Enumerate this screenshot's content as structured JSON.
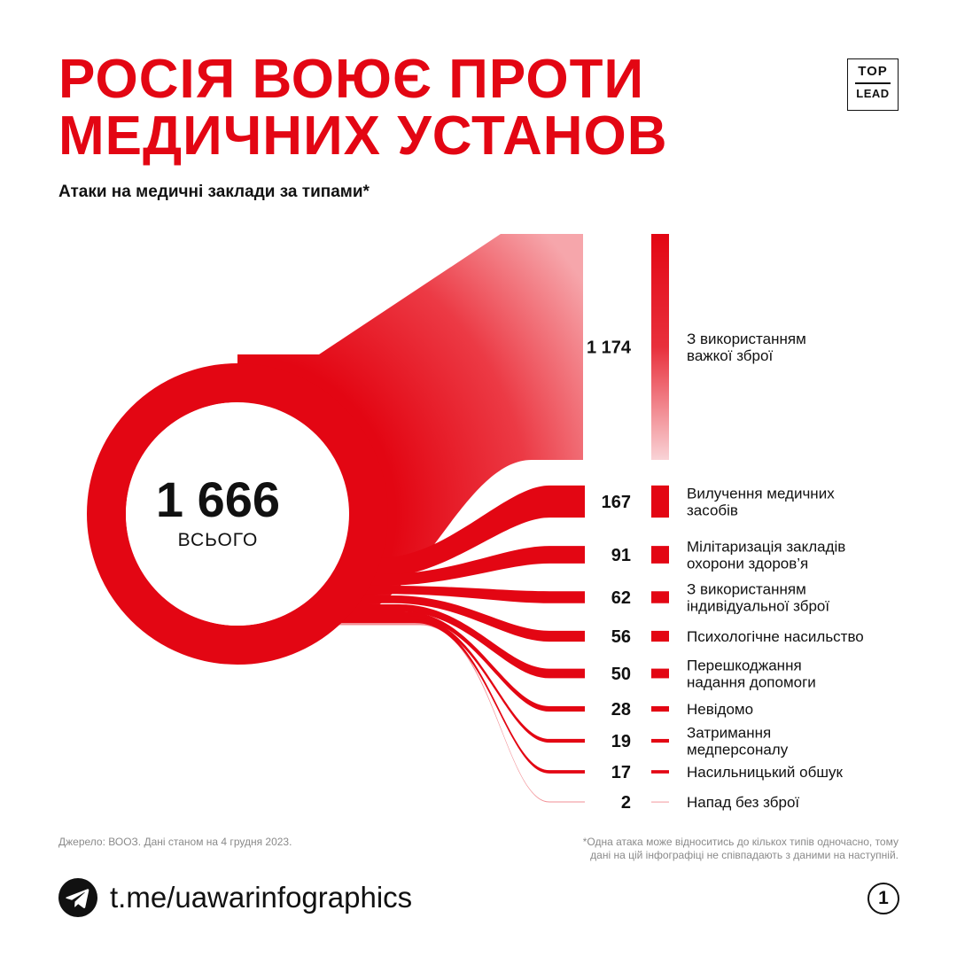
{
  "header": {
    "title_line1": "РОСІЯ ВОЮЄ ПРОТИ",
    "title_line2": "МЕДИЧНИХ УСТАНОВ",
    "subtitle": "Атаки на медичні заклади за типами*",
    "logo_line1": "TOP",
    "logo_line2": "LEAD"
  },
  "colors": {
    "accent": "#e30613",
    "text": "#111111",
    "muted": "#8a8a8a"
  },
  "chart_data": {
    "type": "sankey",
    "title": "Атаки на медичні заклади за типами*",
    "total": {
      "value_label": "1 666",
      "label": "ВСЬОГО",
      "value": 1666
    },
    "categories": [
      "З використанням важкої зброї",
      "Вилучення медичних засобів",
      "Мілітаризація закладів охорони здоров’я",
      "З використанням індивідуальної зброї",
      "Психологічне насильство",
      "Перешкоджання надання допомоги",
      "Невідомо",
      "Затримання медперсоналу",
      "Насильницький обшук",
      "Напад без зброї"
    ],
    "value_labels": [
      "1 174",
      "167",
      "91",
      "62",
      "56",
      "50",
      "28",
      "19",
      "17",
      "2"
    ],
    "values": [
      1174,
      167,
      91,
      62,
      56,
      50,
      28,
      19,
      17,
      2
    ],
    "label_lines": [
      [
        "З використанням",
        "важкої зброї"
      ],
      [
        "Вилучення медичних",
        "засобів"
      ],
      [
        "Мілітаризація закладів",
        "охорони здоров’я"
      ],
      [
        "З використанням",
        "індивідуальної зброї"
      ],
      [
        "Психологічне насильство"
      ],
      [
        "Перешкоджання",
        "надання допомоги"
      ],
      [
        "Невідомо"
      ],
      [
        "Затримання",
        "медперсоналу"
      ],
      [
        "Насильницький обшук"
      ],
      [
        "Напад без зброї"
      ]
    ]
  },
  "footer": {
    "source": "Джерело: ВООЗ. Дані станом на 4 грудня 2023.",
    "footnote_line1": "*Одна атака може відноситись до кількох типів одночасно, тому",
    "footnote_line2": "дані на цій інфографіці не співпадають з даними на наступній.",
    "telegram_link": "t.me/uawarinfographics",
    "page_number": "1"
  }
}
